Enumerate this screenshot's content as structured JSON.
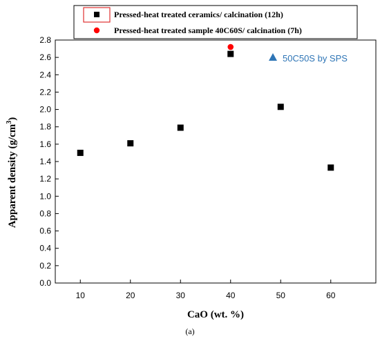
{
  "chart_data": {
    "type": "scatter",
    "xlabel": "CaO (wt. %)",
    "ylabel_main": "Apparent density (g/cm",
    "ylabel_sup": "3",
    "ylabel_close": ")",
    "xlim": [
      5,
      69
    ],
    "ylim": [
      0.0,
      2.8
    ],
    "x_ticks": [
      10,
      20,
      30,
      40,
      50,
      60
    ],
    "y_ticks": [
      "0.0",
      "0.2",
      "0.4",
      "0.6",
      "0.8",
      "1.0",
      "1.2",
      "1.4",
      "1.6",
      "1.8",
      "2.0",
      "2.2",
      "2.4",
      "2.6",
      "2.8"
    ],
    "legend_placement": "top",
    "series": [
      {
        "name": "Pressed-heat treated ceramics/ calcination (12h)",
        "marker": "square",
        "color": "#000000",
        "points": [
          {
            "x": 10,
            "y": 1.5
          },
          {
            "x": 20,
            "y": 1.61
          },
          {
            "x": 30,
            "y": 1.79
          },
          {
            "x": 40,
            "y": 2.64
          },
          {
            "x": 50,
            "y": 2.03
          },
          {
            "x": 60,
            "y": 1.33
          }
        ]
      },
      {
        "name": "Pressed-heat treated sample 40C60S/ calcination (7h)",
        "marker": "circle",
        "color": "#ff0000",
        "points": [
          {
            "x": 40,
            "y": 2.72
          }
        ]
      }
    ],
    "annotation": {
      "text": "50C50S by SPS",
      "marker": "triangle",
      "color": "#2e75b6"
    },
    "caption": "(a)"
  }
}
